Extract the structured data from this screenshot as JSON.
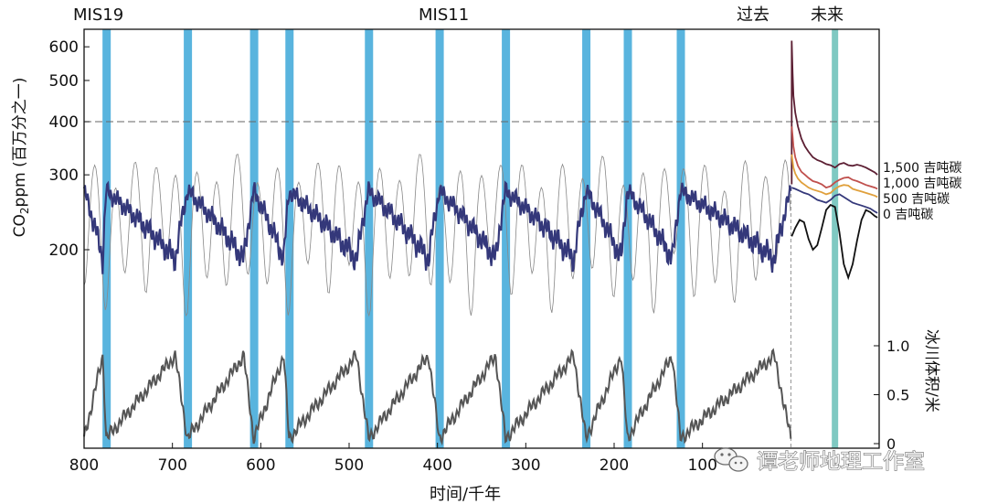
{
  "chart_data": {
    "type": "line",
    "top_labels": [
      "MIS19",
      "MIS11"
    ],
    "past_label": "过去",
    "future_label": "未来",
    "xlabel": "时间/千年",
    "x_ticks": [
      800,
      700,
      600,
      500,
      400,
      300,
      200,
      100
    ],
    "x_range": [
      800,
      -100
    ],
    "ylabel_parts": {
      "a": "CO",
      "sub": "2",
      "b": "ppm (百万分之一)"
    },
    "y_co2_ticks": [
      200,
      300,
      400,
      500,
      600
    ],
    "y_co2_range": [
      130,
      650
    ],
    "y_co2_scale": "log",
    "y_ice_label": "冰川体积/米",
    "y_ice_ticks": [
      "0",
      "0.5",
      "1.0"
    ],
    "y_ice_range": [
      0,
      1
    ],
    "reference_line_co2": 400,
    "interglacial_bands_ka": [
      775,
      683,
      608,
      568,
      478,
      398,
      323,
      232,
      185,
      125
    ],
    "future_band_ka": -50,
    "series": [
      {
        "name": "1,500 吉吨碳",
        "color": "#5c1f33",
        "x": [
          -1,
          -1,
          -2,
          -3,
          -5,
          -8,
          -12,
          -16,
          -20,
          -25,
          -30,
          -35,
          -40,
          -45,
          -50,
          -55,
          -60,
          -65,
          -70,
          -75,
          -80,
          -85,
          -90,
          -95,
          -98
        ],
        "y": [
          285,
          620,
          520,
          460,
          420,
          390,
          365,
          350,
          340,
          330,
          325,
          322,
          318,
          316,
          312,
          318,
          320,
          316,
          315,
          317,
          315,
          312,
          308,
          304,
          300
        ]
      },
      {
        "name": "1,000 吉吨碳",
        "color": "#c0504d",
        "x": [
          -1,
          -2,
          -3,
          -5,
          -8,
          -12,
          -16,
          -20,
          -25,
          -30,
          -35,
          -40,
          -45,
          -50,
          -55,
          -60,
          -65,
          -70,
          -75,
          -80,
          -85,
          -90,
          -95,
          -98
        ],
        "y": [
          390,
          370,
          350,
          330,
          315,
          305,
          300,
          295,
          290,
          288,
          285,
          280,
          282,
          288,
          292,
          295,
          296,
          292,
          290,
          287,
          284,
          282,
          280,
          278
        ]
      },
      {
        "name": "500 吉吨碳",
        "color": "#e0a03c",
        "x": [
          -1,
          -2,
          -3,
          -5,
          -8,
          -12,
          -16,
          -20,
          -25,
          -30,
          -35,
          -40,
          -45,
          -50,
          -55,
          -60,
          -65,
          -70,
          -75,
          -80,
          -85,
          -90,
          -95,
          -98
        ],
        "y": [
          335,
          322,
          312,
          302,
          294,
          288,
          284,
          280,
          277,
          275,
          273,
          270,
          272,
          278,
          282,
          284,
          283,
          278,
          276,
          274,
          272,
          270,
          268,
          266
        ]
      },
      {
        "name": "0 吉吨碳",
        "color": "#34387a",
        "x": [
          -1,
          -5,
          -10,
          -15,
          -20,
          -25,
          -30,
          -35,
          -40,
          -45,
          -50,
          -55,
          -60,
          -65,
          -70,
          -75,
          -80,
          -85,
          -90,
          -95,
          -98
        ],
        "y": [
          280,
          278,
          275,
          272,
          270,
          266,
          262,
          260,
          258,
          262,
          268,
          270,
          266,
          262,
          258,
          256,
          254,
          252,
          250,
          246,
          244
        ]
      },
      {
        "name": "",
        "color": "#111111",
        "x": [
          -1,
          -5,
          -10,
          -15,
          -20,
          -25,
          -30,
          -35,
          -40,
          -45,
          -50,
          -55,
          -60,
          -65,
          -70,
          -75,
          -80,
          -85,
          -90,
          -95,
          -98
        ],
        "y": [
          215,
          225,
          235,
          232,
          212,
          200,
          205,
          225,
          248,
          255,
          252,
          220,
          185,
          172,
          185,
          210,
          235,
          248,
          245,
          240,
          238
        ]
      }
    ]
  },
  "watermark": {
    "text": "谭老师地理工作室",
    "icon": "wechat-icon"
  }
}
